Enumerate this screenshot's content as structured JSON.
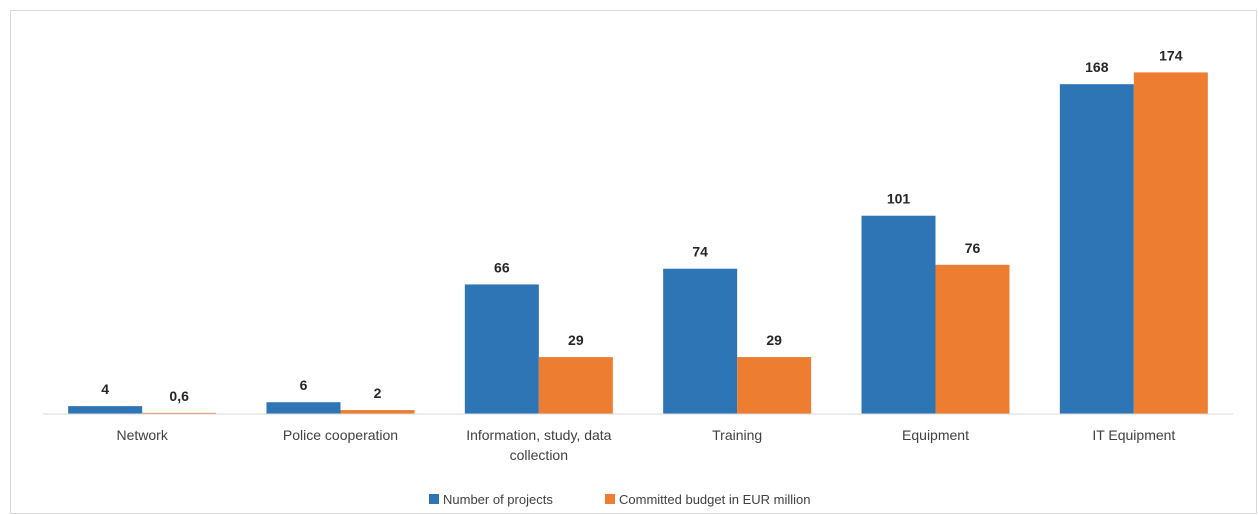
{
  "chart_data": {
    "type": "bar",
    "title": "",
    "xlabel": "",
    "ylabel": "",
    "ylim": [
      0,
      190
    ],
    "grid": false,
    "legend_position": "bottom",
    "categories": [
      [
        "Network"
      ],
      [
        "Police cooperation"
      ],
      [
        "Information, study, data",
        "collection"
      ],
      [
        "Training"
      ],
      [
        "Equipment"
      ],
      [
        "IT Equipment"
      ]
    ],
    "series": [
      {
        "name": "Number of projects",
        "color": "#2e75b6",
        "values": [
          4,
          6,
          66,
          74,
          101,
          168
        ],
        "labels": [
          "4",
          "6",
          "66",
          "74",
          "101",
          "168"
        ]
      },
      {
        "name": "Committed budget in EUR million",
        "color": "#ed7d31",
        "values": [
          0.6,
          2,
          29,
          29,
          76,
          174
        ],
        "labels": [
          "0,6",
          "2",
          "29",
          "29",
          "76",
          "174"
        ]
      }
    ]
  }
}
